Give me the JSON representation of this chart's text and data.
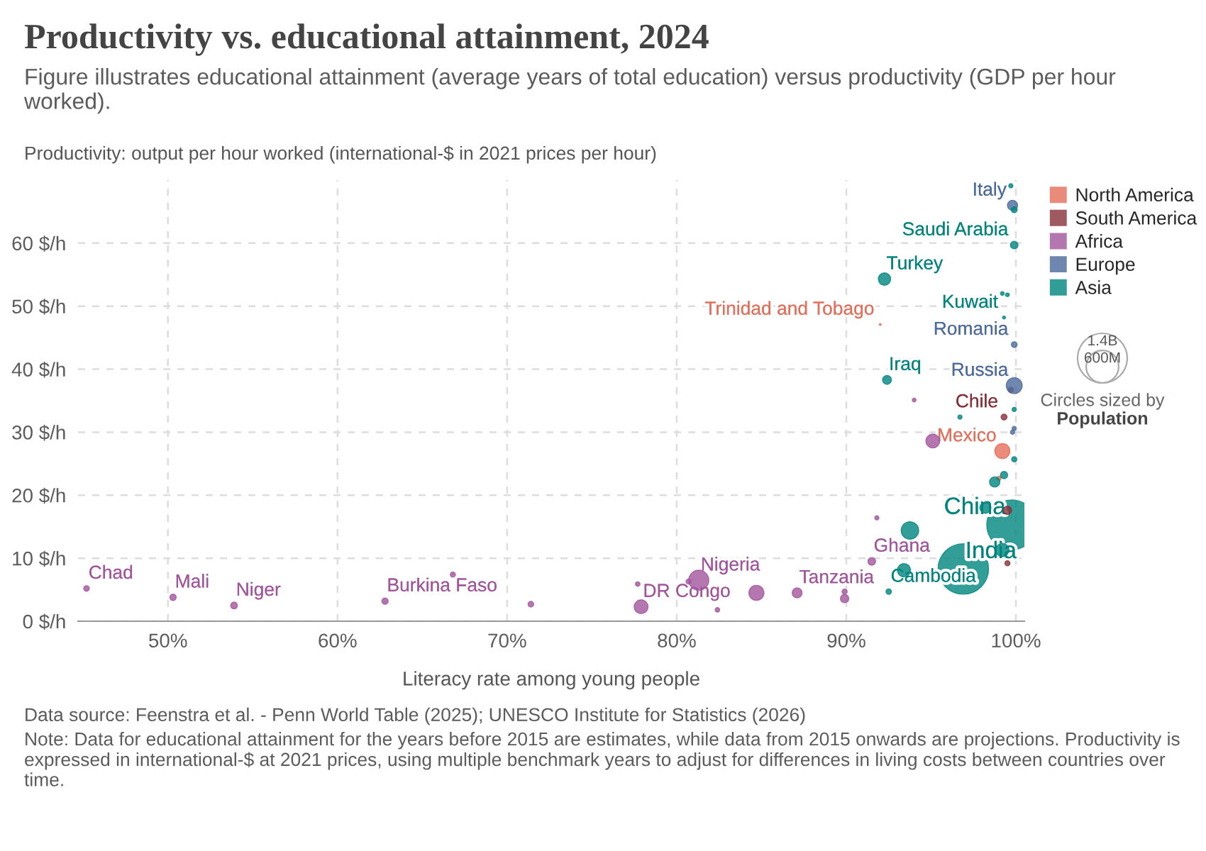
{
  "chart_data": {
    "type": "bubble",
    "title": "Productivity vs. educational attainment, 2024",
    "subtitle": "Figure illustrates educational attainment (average years of total education) versus productivity (GDP per hour worked).",
    "xlabel": "Literacy rate among young people",
    "ylabel": "Productivity: output per hour worked (international-$ in 2021 prices per hour)",
    "xlim": [
      44.7,
      100.5
    ],
    "ylim": [
      0,
      70
    ],
    "xticks": [
      {
        "value": 50,
        "label": "50%"
      },
      {
        "value": 60,
        "label": "60%"
      },
      {
        "value": 70,
        "label": "70%"
      },
      {
        "value": 80,
        "label": "80%"
      },
      {
        "value": 90,
        "label": "90%"
      },
      {
        "value": 100,
        "label": "100%"
      }
    ],
    "yticks": [
      {
        "value": 0,
        "label": "0 $/h"
      },
      {
        "value": 10,
        "label": "10 $/h"
      },
      {
        "value": 20,
        "label": "20 $/h"
      },
      {
        "value": 30,
        "label": "30 $/h"
      },
      {
        "value": 40,
        "label": "40 $/h"
      },
      {
        "value": 50,
        "label": "50 $/h"
      },
      {
        "value": 60,
        "label": "60 $/h"
      }
    ],
    "grid": true,
    "legend": "top right",
    "size_legend": [
      {
        "value": 1400,
        "label": "1.4B"
      },
      {
        "value": 600,
        "label": "600M"
      }
    ],
    "series": [
      {
        "name": "North America",
        "color": "#e56e5a",
        "x": [
          92.0,
          99.2,
          99.0
        ],
        "values": [
          47.1,
          27.0,
          22.7
        ],
        "sizes": [
          2,
          130,
          10
        ],
        "value_labels": [
          "Trinidad and Tobago",
          "Mexico",
          null
        ]
      },
      {
        "name": "South America",
        "color": "#883039",
        "x": [
          99.3,
          99.7,
          99.5,
          99.5
        ],
        "values": [
          32.4,
          36.7,
          17.6,
          9.2
        ],
        "sizes": [
          20,
          15,
          40,
          15
        ],
        "value_labels": [
          "Chile",
          null,
          null,
          null
        ]
      },
      {
        "name": "Africa",
        "color": "#a2559c",
        "x": [
          45.2,
          50.3,
          53.9,
          62.8,
          66.8,
          71.4,
          77.7,
          77.9,
          80.7,
          81.3,
          82.4,
          84.7,
          87.1,
          89.9,
          89.9,
          91.5,
          91.8,
          94.0,
          95.1
        ],
        "values": [
          5.2,
          3.8,
          2.5,
          3.2,
          7.4,
          2.7,
          5.9,
          2.3,
          6.3,
          6.5,
          1.8,
          4.5,
          4.5,
          3.6,
          4.7,
          9.5,
          16.4,
          35.1,
          28.6
        ],
        "sizes": [
          18,
          23,
          26,
          23,
          15,
          18,
          12,
          110,
          15,
          230,
          12,
          130,
          56,
          40,
          15,
          34,
          10,
          8,
          110
        ],
        "value_labels": [
          "Chad",
          "Mali",
          "Niger",
          "Burkina Faso",
          null,
          null,
          null,
          "DR Congo",
          null,
          "Nigeria",
          null,
          null,
          "Tanzania",
          null,
          null,
          "Ghana",
          null,
          null,
          null
        ]
      },
      {
        "name": "Europe",
        "color": "#4c6a9c",
        "x": [
          99.8,
          99.9,
          99.9,
          99.9,
          99.8
        ],
        "values": [
          66.0,
          43.9,
          37.4,
          30.6,
          30.0
        ],
        "sizes": [
          59,
          19,
          145,
          10,
          10
        ],
        "value_labels": [
          "Italy",
          "Romania",
          "Russia",
          null,
          null
        ]
      },
      {
        "name": "Asia",
        "color": "#00847e",
        "x": [
          92.25,
          92.4,
          99.9,
          99.7,
          99.9,
          99.3,
          99.2,
          99.5,
          96.7,
          99.9,
          99.9,
          99.3,
          98.75,
          99.75,
          98.2,
          99.2,
          96.9,
          93.75,
          93.4,
          92.5
        ],
        "values": [
          54.3,
          38.3,
          59.7,
          69.1,
          65.3,
          48.2,
          52.0,
          51.8,
          32.4,
          33.6,
          25.7,
          23.2,
          22.1,
          15.3,
          18.0,
          11.3,
          8.3,
          14.4,
          8.1,
          4.7
        ],
        "sizes": [
          87,
          45,
          33,
          10,
          20,
          5,
          8,
          8,
          10,
          10,
          15,
          30,
          60,
          1410,
          70,
          100,
          1450,
          175,
          100,
          17
        ],
        "value_labels": [
          "Turkey",
          "Iraq",
          "Saudi Arabia",
          null,
          null,
          "Kuwait",
          null,
          null,
          null,
          null,
          null,
          null,
          null,
          "China",
          null,
          null,
          "India",
          null,
          null,
          "Cambodia"
        ]
      }
    ],
    "annotations": [
      "Data source: Feenstra et al. - Penn World Table (2025); UNESCO Institute for Statistics (2026)",
      "Note: Data for educational attainment for the years before 2015 are estimates, while data from 2015 onwards are projections. Productivity is expressed in international-$ at 2021 prices, using multiple benchmark years to adjust for differences in living costs between countries over time.",
      "Circles sized by",
      "Population"
    ]
  }
}
